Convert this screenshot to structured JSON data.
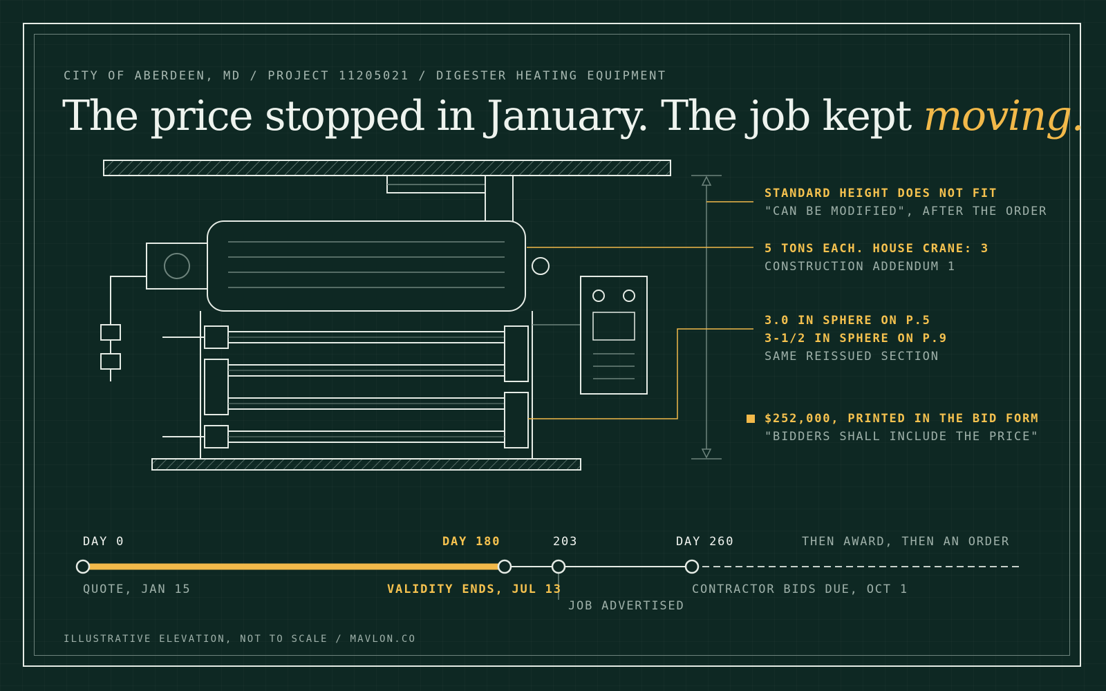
{
  "header": {
    "eyebrow": "CITY OF ABERDEEN, MD / PROJECT 11205021 / DIGESTER HEATING EQUIPMENT",
    "headline_main": "The price stopped in January. The job kept ",
    "headline_accent": "moving."
  },
  "annotations": [
    {
      "highlight": [
        "STANDARD HEIGHT DOES NOT FIT"
      ],
      "sub": "\"CAN BE MODIFIED\", AFTER THE ORDER"
    },
    {
      "highlight": [
        "5 TONS EACH. HOUSE CRANE: 3"
      ],
      "sub": "CONSTRUCTION ADDENDUM 1"
    },
    {
      "highlight": [
        "3.0 IN SPHERE ON P.5",
        "3-1/2 IN SPHERE ON P.9"
      ],
      "sub": "SAME REISSUED SECTION"
    },
    {
      "highlight": [
        "$252,000, PRINTED IN THE BID FORM"
      ],
      "sub": "\"BIDDERS SHALL INCLUDE THE PRICE\""
    }
  ],
  "timeline": {
    "milestones": [
      {
        "day": 0,
        "top_label": "DAY 0",
        "bottom_label": "QUOTE, JAN 15"
      },
      {
        "day": 180,
        "top_label": "DAY 180",
        "bottom_label": "VALIDITY ENDS, JUL 13"
      },
      {
        "day": 203,
        "top_label": "203",
        "bottom_label": "JOB ADVERTISED"
      },
      {
        "day": 260,
        "top_label": "DAY 260",
        "bottom_label": "CONTRACTOR BIDS DUE, OCT 1"
      }
    ],
    "tail_label": "THEN AWARD, THEN AN ORDER"
  },
  "footer": "ILLUSTRATIVE ELEVATION, NOT TO SCALE / MAVLON.CO",
  "colors": {
    "background": "#0e2823",
    "accent": "#f2b94a",
    "line": "#e6ece6",
    "muted": "#9fb1aa"
  }
}
